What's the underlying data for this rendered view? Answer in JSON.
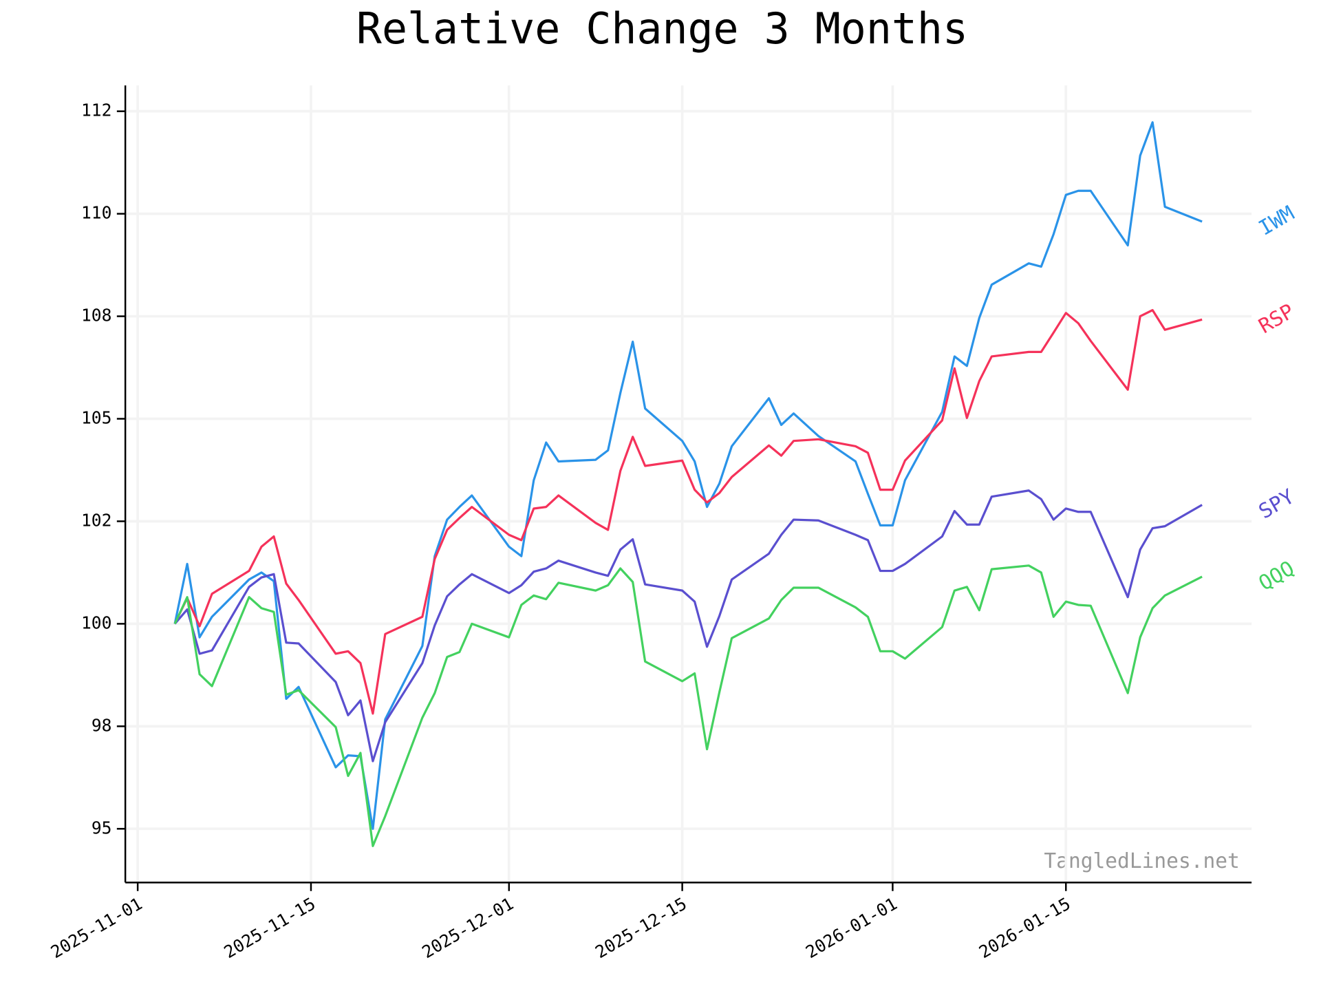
{
  "chart_data": {
    "type": "line",
    "title": "Relative Change 3 Months",
    "watermark": "TangledLines.net",
    "x": [
      "2025-11-04",
      "2025-11-05",
      "2025-11-06",
      "2025-11-07",
      "2025-11-10",
      "2025-11-11",
      "2025-11-12",
      "2025-11-13",
      "2025-11-14",
      "2025-11-17",
      "2025-11-18",
      "2025-11-19",
      "2025-11-20",
      "2025-11-21",
      "2025-11-24",
      "2025-11-25",
      "2025-11-26",
      "2025-11-27",
      "2025-11-28",
      "2025-12-01",
      "2025-12-02",
      "2025-12-03",
      "2025-12-04",
      "2025-12-05",
      "2025-12-08",
      "2025-12-09",
      "2025-12-10",
      "2025-12-11",
      "2025-12-12",
      "2025-12-15",
      "2025-12-16",
      "2025-12-17",
      "2025-12-18",
      "2025-12-19",
      "2025-12-22",
      "2025-12-23",
      "2025-12-24",
      "2025-12-26",
      "2025-12-29",
      "2025-12-30",
      "2025-12-31",
      "2026-01-01",
      "2026-01-02",
      "2026-01-05",
      "2026-01-06",
      "2026-01-07",
      "2026-01-08",
      "2026-01-09",
      "2026-01-12",
      "2026-01-13",
      "2026-01-14",
      "2026-01-15",
      "2026-01-16",
      "2026-01-17",
      "2026-01-20",
      "2026-01-21",
      "2026-01-22",
      "2026-01-23",
      "2026-01-26"
    ],
    "series": [
      {
        "name": "IWM",
        "color": "#2a93e8",
        "values": [
          100,
          101.46,
          99.67,
          100.17,
          101.08,
          101.25,
          101.04,
          98.17,
          98.46,
          96.5,
          96.79,
          96.77,
          95.0,
          97.67,
          99.46,
          101.65,
          102.54,
          102.85,
          103.13,
          101.88,
          101.65,
          103.5,
          104.42,
          103.96,
          104.0,
          104.23,
          105.63,
          106.88,
          105.25,
          104.46,
          103.96,
          102.85,
          103.42,
          104.33,
          105.5,
          104.85,
          105.13,
          104.58,
          103.96,
          103.17,
          102.4,
          102.4,
          103.5,
          105.17,
          106.52,
          106.29,
          107.46,
          108.27,
          108.79,
          108.71,
          109.5,
          110.46,
          110.56,
          110.56,
          109.23,
          111.42,
          112.23,
          110.17,
          109.81
        ]
      },
      {
        "name": "RSP",
        "color": "#f5325a",
        "values": [
          100,
          100.63,
          99.94,
          100.73,
          101.29,
          101.88,
          102.13,
          100.98,
          100.58,
          99.27,
          99.33,
          99.04,
          97.81,
          99.75,
          100.17,
          101.58,
          102.29,
          102.58,
          102.85,
          102.17,
          102.04,
          102.81,
          102.85,
          103.13,
          102.46,
          102.29,
          103.73,
          104.56,
          103.85,
          103.98,
          103.27,
          102.96,
          103.19,
          103.58,
          104.35,
          104.1,
          104.46,
          104.5,
          104.33,
          104.17,
          103.27,
          103.27,
          103.98,
          104.96,
          106.23,
          105.02,
          105.92,
          106.52,
          106.63,
          106.63,
          107.1,
          107.58,
          107.33,
          106.9,
          105.71,
          107.5,
          107.65,
          107.17,
          107.42
        ]
      },
      {
        "name": "SPY",
        "color": "#5a4fcf",
        "values": [
          100,
          100.35,
          99.27,
          99.35,
          100.9,
          101.13,
          101.21,
          99.54,
          99.52,
          98.58,
          97.77,
          98.13,
          96.65,
          97.6,
          99.04,
          99.96,
          100.67,
          100.96,
          101.21,
          100.75,
          100.94,
          101.27,
          101.35,
          101.54,
          101.25,
          101.17,
          101.81,
          102.06,
          100.96,
          100.81,
          100.54,
          99.44,
          100.19,
          101.08,
          101.71,
          102.17,
          102.54,
          102.52,
          102.17,
          102.04,
          101.29,
          101.29,
          101.46,
          102.13,
          102.75,
          102.42,
          102.42,
          103.1,
          103.25,
          103.04,
          102.54,
          102.81,
          102.73,
          102.73,
          100.65,
          101.81,
          102.33,
          102.38,
          102.9
        ]
      },
      {
        "name": "QQQ",
        "color": "#43d15f",
        "values": [
          100,
          100.65,
          98.77,
          98.48,
          100.65,
          100.38,
          100.29,
          98.27,
          98.38,
          97.48,
          96.29,
          96.85,
          94.58,
          95.31,
          97.71,
          98.31,
          99.19,
          99.31,
          100,
          99.67,
          100.46,
          100.69,
          100.6,
          101.0,
          100.81,
          100.94,
          101.35,
          101.02,
          99.08,
          98.6,
          98.79,
          96.94,
          98.33,
          99.65,
          100.13,
          100.58,
          100.88,
          100.88,
          100.4,
          100.17,
          99.33,
          99.33,
          99.15,
          99.92,
          100.81,
          100.9,
          100.33,
          101.33,
          101.42,
          101.25,
          100.17,
          100.54,
          100.46,
          100.44,
          98.31,
          99.67,
          100.38,
          100.69,
          101.15
        ]
      }
    ],
    "xlim": [
      "2025-10-31",
      "2026-01-30"
    ],
    "xticks": [
      "2025-11-01",
      "2025-11-15",
      "2025-12-01",
      "2025-12-15",
      "2026-01-01",
      "2026-01-15"
    ],
    "ylim": [
      93.69,
      113.13
    ],
    "yticks": [
      {
        "value": 95,
        "label": "95"
      },
      {
        "value": 97.5,
        "label": "98"
      },
      {
        "value": 100,
        "label": "100"
      },
      {
        "value": 102.5,
        "label": "102"
      },
      {
        "value": 105,
        "label": "105"
      },
      {
        "value": 107.5,
        "label": "108"
      },
      {
        "value": 110,
        "label": "110"
      },
      {
        "value": 112.5,
        "label": "112"
      }
    ],
    "grid": true
  }
}
